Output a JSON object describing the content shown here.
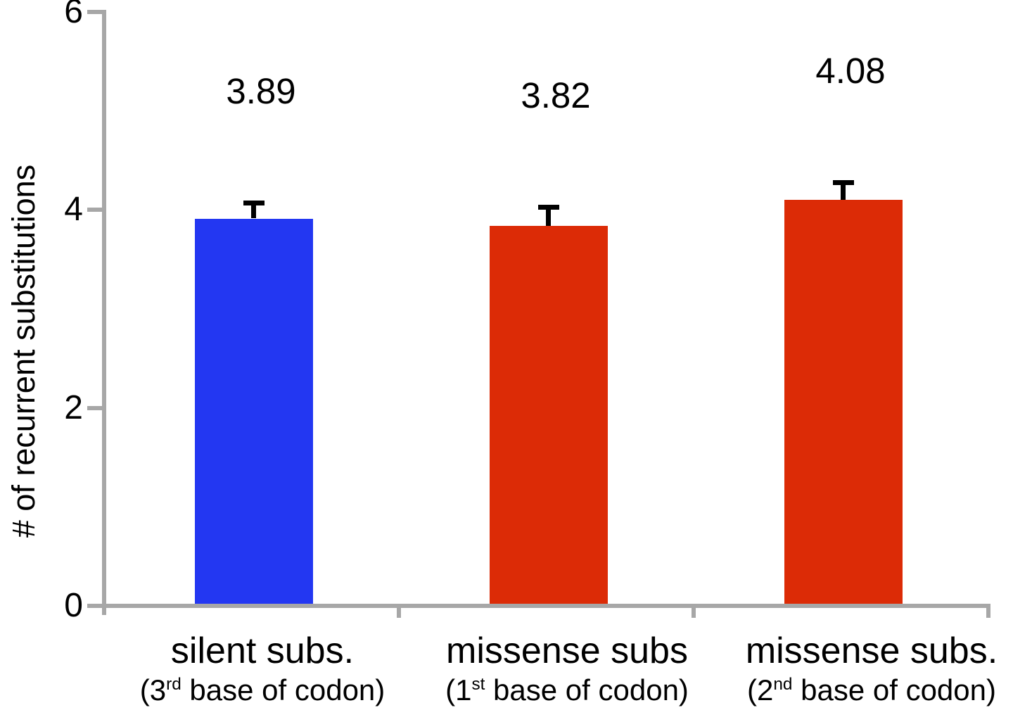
{
  "chart_data": {
    "type": "bar",
    "title": "",
    "ylabel": "# of recurrent substitutions",
    "xlabel": "",
    "ylim": [
      0,
      6
    ],
    "ytick_labels": [
      "0",
      "2",
      "4",
      "6"
    ],
    "ytick_values": [
      0,
      2,
      4,
      6
    ],
    "grid": false,
    "legend": false,
    "axis_color": "#a7a7a7",
    "error_bar_color": "#000000",
    "text_color": "#000000",
    "categories": [
      {
        "line1": "silent subs.",
        "line2_prefix": "(3",
        "line2_superscript": "rd",
        "line2_suffix": " base of codon)",
        "value": 3.89,
        "value_label": "3.89",
        "error": 0.18,
        "bar_color": "#2337f2"
      },
      {
        "line1": "missense subs",
        "line2_prefix": "(1",
        "line2_superscript": "st",
        "line2_suffix": " base of codon)",
        "value": 3.82,
        "value_label": "3.82",
        "error": 0.21,
        "bar_color": "#dc2b06"
      },
      {
        "line1": "missense subs.",
        "line2_prefix": "(2",
        "line2_superscript": "nd",
        "line2_suffix": " base of codon)",
        "value": 4.08,
        "value_label": "4.08",
        "error": 0.2,
        "bar_color": "#dc2b06"
      }
    ]
  }
}
